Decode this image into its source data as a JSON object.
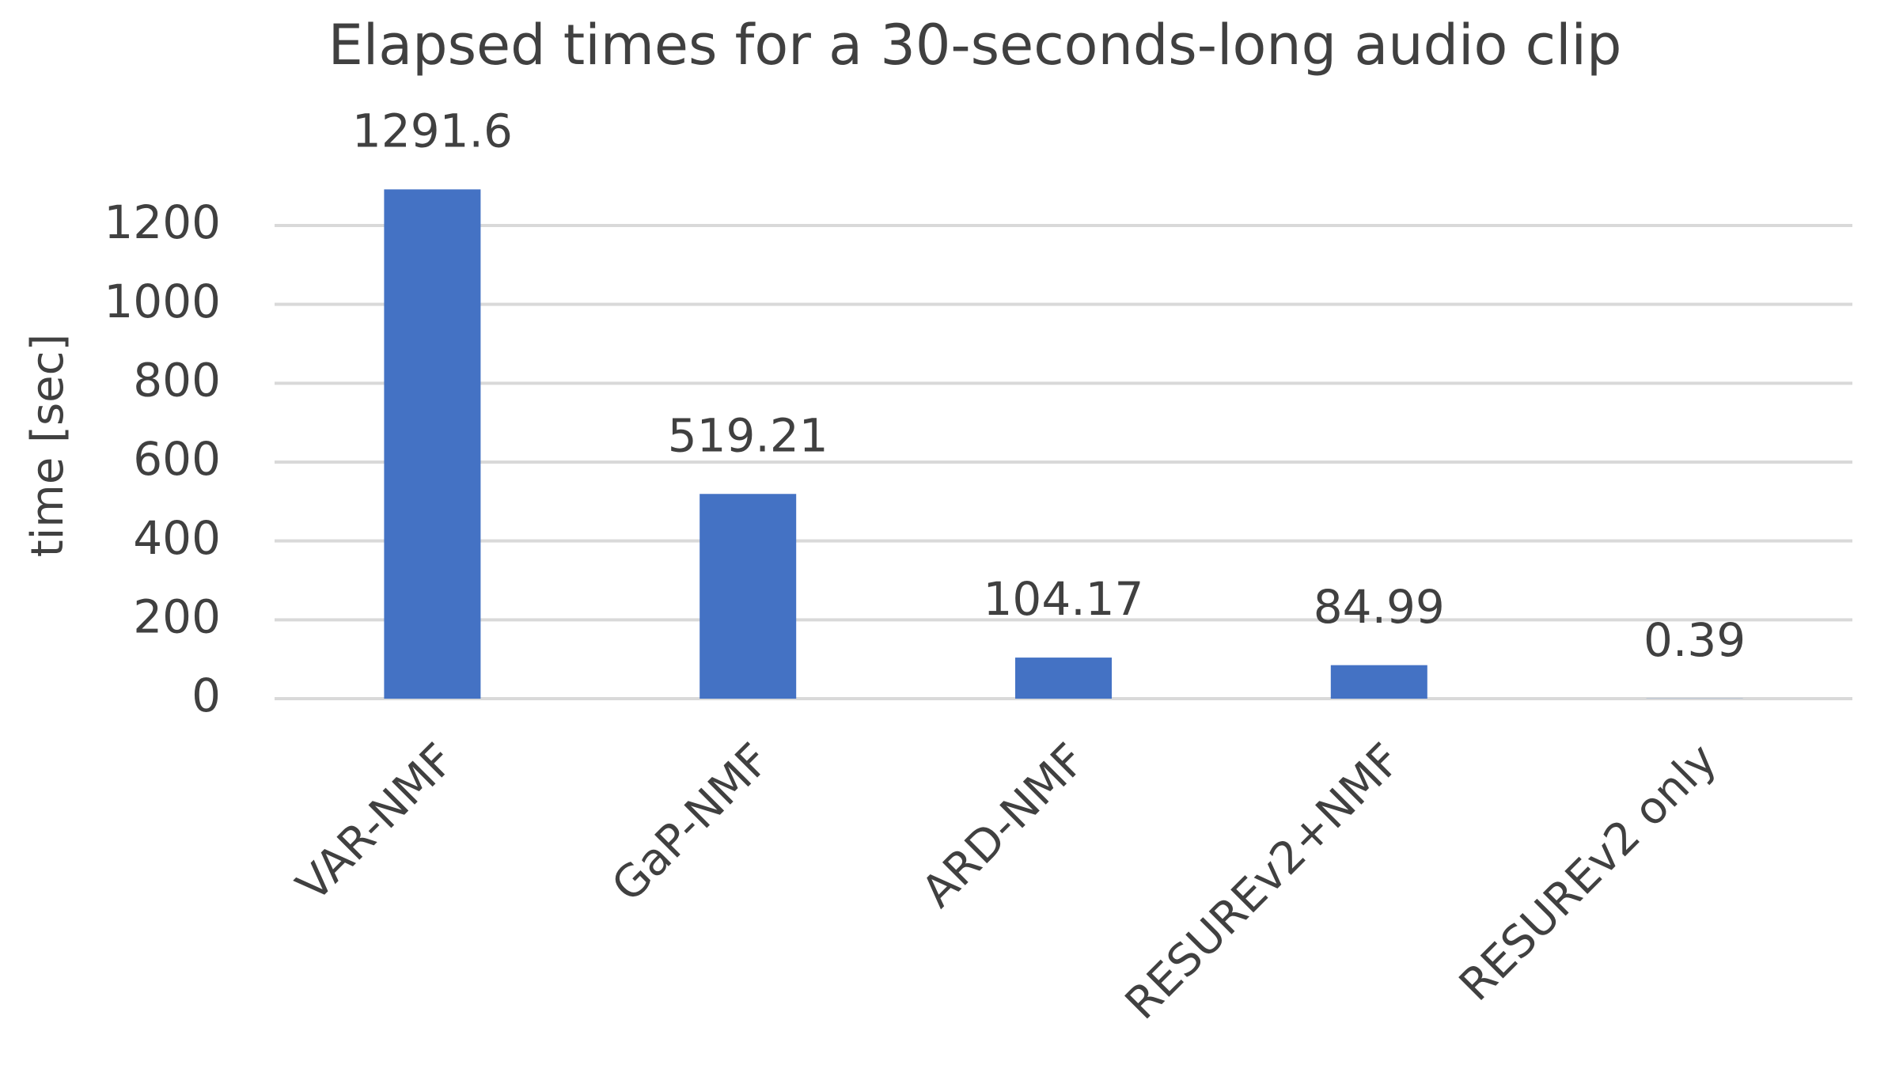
{
  "chart_data": {
    "type": "bar",
    "title": "Elapsed times for a 30-seconds-long audio clip",
    "y_label": "time [sec]",
    "categories": [
      "VAR-NMF",
      "GaP-NMF",
      "ARD-NMF",
      "RESUREv2+NMF",
      "RESUREv2 only"
    ],
    "values": [
      1291.6,
      519.21,
      104.17,
      84.99,
      0.39
    ],
    "color": "#4472c4",
    "ylim": [
      0,
      1200
    ],
    "yticks": [
      0,
      200,
      400,
      600,
      800,
      1000,
      1200
    ],
    "grid": true
  }
}
